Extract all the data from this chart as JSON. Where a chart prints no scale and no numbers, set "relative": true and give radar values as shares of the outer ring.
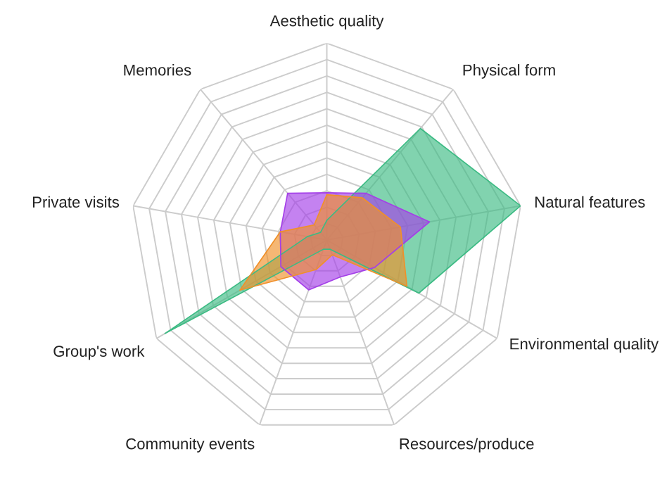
{
  "chart_data": {
    "type": "radar",
    "relative": true,
    "categories": [
      "Aesthetic quality",
      "Physical form",
      "Natural features",
      "Environmental quality",
      "Resources/produce",
      "Community events",
      "Group's work",
      "Private visits",
      "Memories"
    ],
    "series": [
      {
        "color": "#3dbb84",
        "values": [
          0.1,
          0.74,
          1.0,
          0.54,
          0.05,
          0.05,
          0.95,
          0.1,
          0.05
        ]
      },
      {
        "color": "#a43fe8",
        "values": [
          0.24,
          0.31,
          0.53,
          0.28,
          0.2,
          0.27,
          0.27,
          0.24,
          0.31
        ]
      },
      {
        "color": "#f0902a",
        "values": [
          0.23,
          0.28,
          0.38,
          0.47,
          0.08,
          0.16,
          0.51,
          0.24,
          0.1
        ]
      }
    ]
  }
}
